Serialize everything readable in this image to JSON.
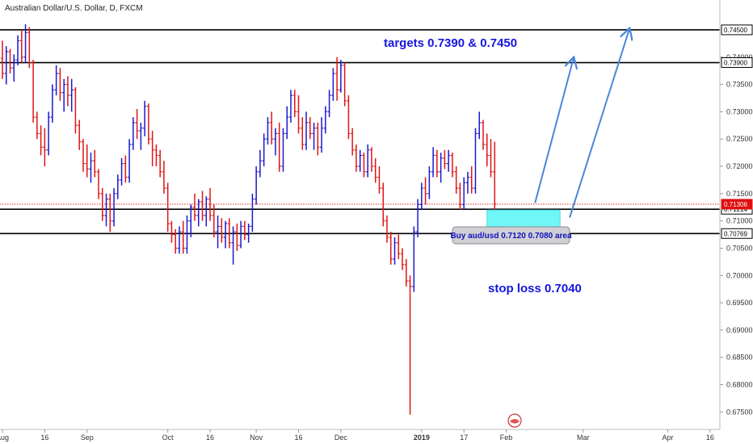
{
  "chart_data": {
    "type": "ohlc",
    "title": "Australian Dollar/U.S. Dollar, D, FXCM",
    "ylim": [
      0.6718,
      0.7478
    ],
    "price_ticks": [
      "0.67500",
      "0.68000",
      "0.68500",
      "0.69000",
      "0.69500",
      "0.70000",
      "0.70500",
      "0.71000",
      "0.71500",
      "0.72000",
      "0.72500",
      "0.73000",
      "0.73500",
      "0.74000"
    ],
    "time_ticks": [
      {
        "label": "Aug",
        "bar": 0,
        "bold": false
      },
      {
        "label": "16",
        "bar": 11,
        "bold": false
      },
      {
        "label": "Sep",
        "bar": 22,
        "bold": false
      },
      {
        "label": "Oct",
        "bar": 43,
        "bold": false
      },
      {
        "label": "16",
        "bar": 54,
        "bold": false
      },
      {
        "label": "Nov",
        "bar": 66,
        "bold": false
      },
      {
        "label": "16",
        "bar": 77,
        "bold": false
      },
      {
        "label": "Dec",
        "bar": 88,
        "bold": false
      },
      {
        "label": "2019",
        "bar": 109,
        "bold": true
      },
      {
        "label": "17",
        "bar": 120,
        "bold": false
      },
      {
        "label": "Feb",
        "bar": 131,
        "bold": false
      },
      {
        "label": "Mar",
        "bar": 151,
        "bold": false
      },
      {
        "label": "Apr",
        "bar": 173,
        "bold": false
      },
      {
        "label": "16",
        "bar": 184,
        "bold": false
      }
    ],
    "horizontal_lines": [
      {
        "price": 0.745,
        "label": "0.74500",
        "color": "#000000",
        "label_bg": "#ffffff"
      },
      {
        "price": 0.739,
        "label": "0.73900",
        "color": "#000000",
        "label_bg": "#ffffff"
      },
      {
        "price": 0.71214,
        "label": "0.71214",
        "color": "#000000",
        "label_bg": "#ffffff"
      },
      {
        "price": 0.70769,
        "label": "0.70769",
        "color": "#000000",
        "label_bg": "#ffffff"
      }
    ],
    "last_price": {
      "price": 0.71306,
      "label": "0.71306",
      "color": "#e01010"
    },
    "buy_zone": {
      "from_bar": 126,
      "to_bar": 145,
      "price_high": 0.712,
      "price_low": 0.708,
      "color": "#6ff7f7"
    },
    "arrows": [
      {
        "from_bar": 138.5,
        "from_price": 0.7133,
        "to_bar": 148.5,
        "to_price": 0.7398
      },
      {
        "from_bar": 147.5,
        "from_price": 0.7106,
        "to_bar": 163,
        "to_price": 0.7451
      }
    ],
    "annotations": {
      "targets": "targets 0.7390 & 0.7450",
      "stop_loss": "stop loss 0.7040",
      "buy_label": "Buy aud/usd 0.7120 0.7080 area"
    },
    "colors": {
      "up": "#1a1ad0",
      "down": "#e01515",
      "arrow": "#4a86d8"
    },
    "bars": [
      [
        0.7398,
        0.743,
        0.736,
        0.737
      ],
      [
        0.737,
        0.742,
        0.735,
        0.741
      ],
      [
        0.741,
        0.7415,
        0.737,
        0.738
      ],
      [
        0.738,
        0.7405,
        0.7355,
        0.7395
      ],
      [
        0.7395,
        0.744,
        0.7385,
        0.743
      ],
      [
        0.743,
        0.745,
        0.739,
        0.74
      ],
      [
        0.74,
        0.746,
        0.739,
        0.7445
      ],
      [
        0.7445,
        0.7455,
        0.738,
        0.739
      ],
      [
        0.739,
        0.7395,
        0.728,
        0.729
      ],
      [
        0.729,
        0.73,
        0.725,
        0.726
      ],
      [
        0.726,
        0.7275,
        0.722,
        0.7235
      ],
      [
        0.7235,
        0.727,
        0.72,
        0.723
      ],
      [
        0.723,
        0.73,
        0.722,
        0.729
      ],
      [
        0.729,
        0.735,
        0.728,
        0.734
      ],
      [
        0.734,
        0.7385,
        0.733,
        0.737
      ],
      [
        0.737,
        0.738,
        0.732,
        0.7335
      ],
      [
        0.7335,
        0.736,
        0.73,
        0.735
      ],
      [
        0.735,
        0.7365,
        0.731,
        0.733
      ],
      [
        0.733,
        0.736,
        0.73,
        0.734
      ],
      [
        0.734,
        0.7345,
        0.726,
        0.7275
      ],
      [
        0.7275,
        0.7285,
        0.723,
        0.7245
      ],
      [
        0.7245,
        0.725,
        0.719,
        0.7205
      ],
      [
        0.7205,
        0.724,
        0.718,
        0.7195
      ],
      [
        0.7195,
        0.7225,
        0.717,
        0.721
      ],
      [
        0.721,
        0.723,
        0.718,
        0.719
      ],
      [
        0.719,
        0.7195,
        0.714,
        0.715
      ],
      [
        0.715,
        0.716,
        0.71,
        0.711
      ],
      [
        0.711,
        0.715,
        0.709,
        0.714
      ],
      [
        0.714,
        0.715,
        0.708,
        0.71
      ],
      [
        0.71,
        0.716,
        0.709,
        0.715
      ],
      [
        0.715,
        0.7185,
        0.714,
        0.7175
      ],
      [
        0.7175,
        0.7215,
        0.7165,
        0.7205
      ],
      [
        0.7205,
        0.722,
        0.717,
        0.718
      ],
      [
        0.718,
        0.725,
        0.717,
        0.724
      ],
      [
        0.724,
        0.729,
        0.723,
        0.728
      ],
      [
        0.728,
        0.7305,
        0.725,
        0.7265
      ],
      [
        0.7265,
        0.728,
        0.723,
        0.727
      ],
      [
        0.727,
        0.732,
        0.7255,
        0.731
      ],
      [
        0.731,
        0.7315,
        0.724,
        0.725
      ],
      [
        0.725,
        0.7265,
        0.72,
        0.723
      ],
      [
        0.723,
        0.724,
        0.72,
        0.722
      ],
      [
        0.722,
        0.723,
        0.718,
        0.719
      ],
      [
        0.719,
        0.721,
        0.715,
        0.716
      ],
      [
        0.716,
        0.717,
        0.708,
        0.7095
      ],
      [
        0.7095,
        0.71,
        0.706,
        0.7075
      ],
      [
        0.7075,
        0.7085,
        0.704,
        0.705
      ],
      [
        0.705,
        0.709,
        0.704,
        0.708
      ],
      [
        0.708,
        0.71,
        0.704,
        0.705
      ],
      [
        0.705,
        0.711,
        0.704,
        0.71
      ],
      [
        0.71,
        0.713,
        0.707,
        0.7125
      ],
      [
        0.7125,
        0.715,
        0.71,
        0.711
      ],
      [
        0.711,
        0.714,
        0.709,
        0.7135
      ],
      [
        0.7135,
        0.7155,
        0.71,
        0.711
      ],
      [
        0.711,
        0.7145,
        0.709,
        0.714
      ],
      [
        0.714,
        0.716,
        0.71,
        0.711
      ],
      [
        0.711,
        0.713,
        0.707,
        0.708
      ],
      [
        0.708,
        0.711,
        0.705,
        0.709
      ],
      [
        0.709,
        0.7105,
        0.706,
        0.707
      ],
      [
        0.707,
        0.71,
        0.705,
        0.7095
      ],
      [
        0.7095,
        0.7105,
        0.705,
        0.706
      ],
      [
        0.706,
        0.709,
        0.702,
        0.708
      ],
      [
        0.708,
        0.7095,
        0.7045,
        0.7055
      ],
      [
        0.7055,
        0.71,
        0.705,
        0.709
      ],
      [
        0.709,
        0.71,
        0.7065,
        0.7075
      ],
      [
        0.7075,
        0.7095,
        0.706,
        0.709
      ],
      [
        0.709,
        0.715,
        0.708,
        0.714
      ],
      [
        0.714,
        0.72,
        0.713,
        0.719
      ],
      [
        0.719,
        0.723,
        0.718,
        0.721
      ],
      [
        0.721,
        0.726,
        0.72,
        0.725
      ],
      [
        0.725,
        0.729,
        0.724,
        0.728
      ],
      [
        0.728,
        0.73,
        0.724,
        0.725
      ],
      [
        0.725,
        0.727,
        0.722,
        0.726
      ],
      [
        0.726,
        0.728,
        0.719,
        0.72
      ],
      [
        0.72,
        0.727,
        0.719,
        0.726
      ],
      [
        0.726,
        0.731,
        0.725,
        0.729
      ],
      [
        0.729,
        0.734,
        0.728,
        0.733
      ],
      [
        0.733,
        0.734,
        0.729,
        0.73
      ],
      [
        0.73,
        0.733,
        0.726,
        0.727
      ],
      [
        0.727,
        0.729,
        0.723,
        0.724
      ],
      [
        0.724,
        0.73,
        0.723,
        0.728
      ],
      [
        0.728,
        0.729,
        0.725,
        0.726
      ],
      [
        0.726,
        0.728,
        0.723,
        0.727
      ],
      [
        0.727,
        0.728,
        0.722,
        0.7235
      ],
      [
        0.7235,
        0.729,
        0.7225,
        0.727
      ],
      [
        0.727,
        0.731,
        0.726,
        0.73
      ],
      [
        0.73,
        0.734,
        0.729,
        0.733
      ],
      [
        0.733,
        0.738,
        0.732,
        0.737
      ],
      [
        0.737,
        0.74,
        0.732,
        0.734
      ],
      [
        0.734,
        0.7395,
        0.7335,
        0.7385
      ],
      [
        0.7385,
        0.739,
        0.731,
        0.732
      ],
      [
        0.732,
        0.733,
        0.725,
        0.726
      ],
      [
        0.726,
        0.727,
        0.722,
        0.723
      ],
      [
        0.723,
        0.724,
        0.719,
        0.72
      ],
      [
        0.72,
        0.723,
        0.719,
        0.722
      ],
      [
        0.722,
        0.7225,
        0.718,
        0.719
      ],
      [
        0.719,
        0.724,
        0.718,
        0.723
      ],
      [
        0.723,
        0.7235,
        0.719,
        0.72
      ],
      [
        0.72,
        0.7215,
        0.717,
        0.718
      ],
      [
        0.718,
        0.72,
        0.715,
        0.716
      ],
      [
        0.716,
        0.717,
        0.709,
        0.71
      ],
      [
        0.71,
        0.711,
        0.706,
        0.707
      ],
      [
        0.707,
        0.708,
        0.702,
        0.703
      ],
      [
        0.703,
        0.707,
        0.702,
        0.706
      ],
      [
        0.706,
        0.7075,
        0.703,
        0.704
      ],
      [
        0.704,
        0.705,
        0.701,
        0.702
      ],
      [
        0.702,
        0.703,
        0.698,
        0.699
      ],
      [
        0.699,
        0.7,
        0.6745,
        0.698
      ],
      [
        0.698,
        0.709,
        0.697,
        0.708
      ],
      [
        0.708,
        0.714,
        0.707,
        0.713
      ],
      [
        0.713,
        0.717,
        0.712,
        0.716
      ],
      [
        0.716,
        0.718,
        0.713,
        0.715
      ],
      [
        0.715,
        0.72,
        0.714,
        0.719
      ],
      [
        0.719,
        0.7235,
        0.718,
        0.722
      ],
      [
        0.722,
        0.723,
        0.718,
        0.719
      ],
      [
        0.719,
        0.7225,
        0.717,
        0.7215
      ],
      [
        0.7215,
        0.723,
        0.7195,
        0.7205
      ],
      [
        0.7205,
        0.723,
        0.719,
        0.722
      ],
      [
        0.722,
        0.7225,
        0.718,
        0.719
      ],
      [
        0.719,
        0.72,
        0.715,
        0.716
      ],
      [
        0.716,
        0.717,
        0.712,
        0.713
      ],
      [
        0.713,
        0.718,
        0.712,
        0.717
      ],
      [
        0.717,
        0.719,
        0.715,
        0.718
      ],
      [
        0.718,
        0.72,
        0.715,
        0.716
      ],
      [
        0.716,
        0.727,
        0.715,
        0.726
      ],
      [
        0.726,
        0.73,
        0.725,
        0.728
      ],
      [
        0.728,
        0.7285,
        0.723,
        0.724
      ],
      [
        0.724,
        0.726,
        0.72,
        0.722
      ],
      [
        0.722,
        0.725,
        0.718,
        0.719
      ],
      [
        0.719,
        0.7245,
        0.712,
        0.7131
      ]
    ]
  }
}
